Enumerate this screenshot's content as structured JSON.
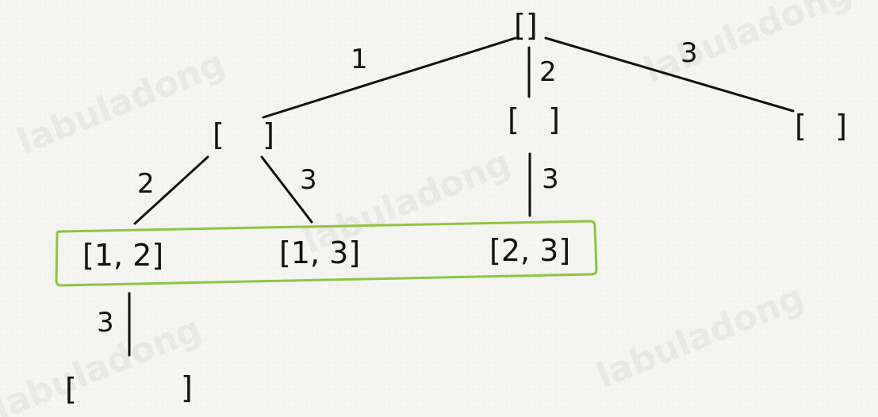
{
  "diagram": {
    "nodes": {
      "root": "[]",
      "level1_left": "[    ]",
      "level1_middle": "[   ]",
      "level1_right": "[   ]",
      "level2_a": "[1, 2]",
      "level2_b": "[1, 3]",
      "level2_c": "[2, 3]",
      "level3_left_open": "[",
      "level3_left_close": "]"
    },
    "edge_labels": {
      "root_to_left": "1",
      "root_to_middle": "2",
      "root_to_right": "3",
      "left_to_a": "2",
      "left_to_b": "3",
      "middle_to_c": "3",
      "a_to_leaf": "3"
    },
    "highlight_color": "#8dc63f",
    "watermark_text": "labuladong"
  }
}
